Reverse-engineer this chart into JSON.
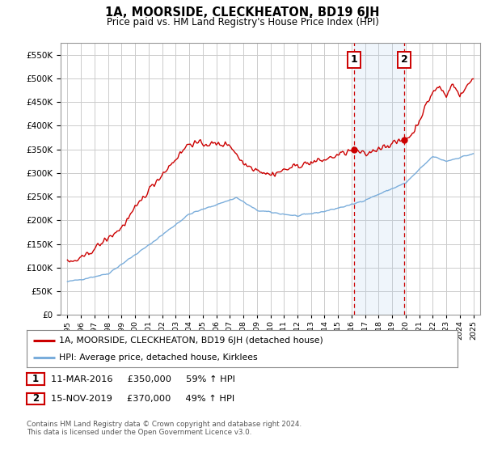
{
  "title": "1A, MOORSIDE, CLECKHEATON, BD19 6JH",
  "subtitle": "Price paid vs. HM Land Registry's House Price Index (HPI)",
  "ytick_values": [
    0,
    50000,
    100000,
    150000,
    200000,
    250000,
    300000,
    350000,
    400000,
    450000,
    500000,
    550000
  ],
  "ylim": [
    0,
    575000
  ],
  "xlim_start": 1994.5,
  "xlim_end": 2025.5,
  "sale1_x": 2016.19,
  "sale1_y": 350000,
  "sale1_label": "1",
  "sale1_date": "11-MAR-2016",
  "sale1_price": "£350,000",
  "sale1_hpi": "59% ↑ HPI",
  "sale2_x": 2019.88,
  "sale2_y": 370000,
  "sale2_label": "2",
  "sale2_date": "15-NOV-2019",
  "sale2_price": "£370,000",
  "sale2_hpi": "49% ↑ HPI",
  "line1_label": "1A, MOORSIDE, CLECKHEATON, BD19 6JH (detached house)",
  "line2_label": "HPI: Average price, detached house, Kirklees",
  "line1_color": "#cc0000",
  "line2_color": "#7aaddb",
  "vline_color": "#cc0000",
  "shade_color": "#ddeeff",
  "footnote": "Contains HM Land Registry data © Crown copyright and database right 2024.\nThis data is licensed under the Open Government Licence v3.0.",
  "background_color": "#ffffff",
  "grid_color": "#cccccc"
}
